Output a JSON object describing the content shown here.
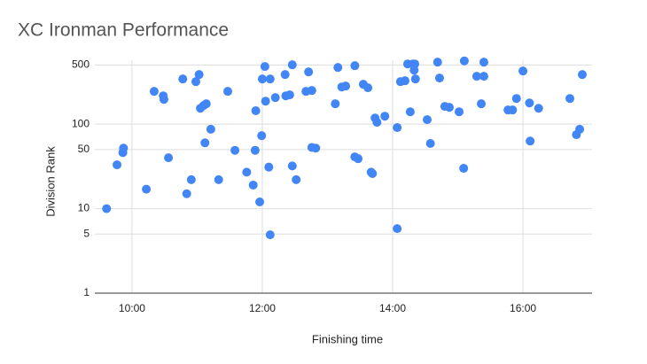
{
  "chart_data": {
    "type": "scatter",
    "title": "XC Ironman Performance",
    "x_label": "Finishing time",
    "y_label": "Division Rank",
    "x": [
      9.61,
      9.77,
      9.86,
      9.87,
      10.22,
      10.34,
      10.48,
      10.49,
      10.56,
      10.78,
      10.84,
      10.91,
      10.98,
      11.03,
      11.05,
      11.1,
      11.14,
      11.12,
      11.21,
      11.33,
      11.47,
      11.58,
      11.76,
      11.86,
      11.89,
      11.9,
      11.96,
      11.99,
      12.0,
      12.04,
      12.05,
      12.1,
      12.12,
      12.12,
      12.2,
      12.35,
      12.36,
      12.42,
      12.46,
      12.46,
      12.52,
      12.67,
      12.71,
      12.76,
      12.76,
      12.82,
      13.12,
      13.16,
      13.22,
      13.28,
      13.42,
      13.42,
      13.47,
      13.55,
      13.62,
      13.67,
      13.69,
      13.73,
      13.76,
      13.88,
      14.07,
      14.07,
      14.12,
      14.19,
      14.23,
      14.31,
      14.33,
      14.27,
      14.34,
      14.35,
      14.53,
      14.58,
      14.69,
      14.72,
      14.8,
      14.87,
      15.02,
      15.09,
      15.1,
      15.29,
      15.36,
      15.4,
      15.4,
      15.77,
      15.84,
      15.9,
      16.0,
      16.1,
      16.11,
      16.24,
      16.72,
      16.82,
      16.87,
      16.91
    ],
    "values": [
      10,
      33,
      46,
      52,
      17,
      244,
      216,
      196,
      40,
      342,
      15,
      22,
      318,
      386,
      154,
      166,
      174,
      60,
      87,
      22,
      244,
      49,
      27,
      19,
      49,
      144,
      12,
      73,
      342,
      480,
      187,
      31,
      4.9,
      342,
      206,
      386,
      216,
      222,
      32,
      503,
      22,
      244,
      415,
      250,
      53,
      52,
      174,
      468,
      275,
      282,
      491,
      41,
      39,
      296,
      269,
      27,
      26,
      118,
      105,
      124,
      5.8,
      91,
      318,
      326,
      515,
      515,
      435,
      140,
      515,
      342,
      113,
      59,
      541,
      351,
      162,
      158,
      140,
      30,
      560,
      368,
      174,
      541,
      368,
      147,
      147,
      201,
      425,
      178,
      63,
      154,
      201,
      75,
      87,
      386
    ],
    "color": "#4285f4",
    "xlim": [
      9.43,
      17.06
    ],
    "xticks": [
      {
        "value": 10,
        "label": "10:00"
      },
      {
        "value": 12,
        "label": "12:00"
      },
      {
        "value": 14,
        "label": "14:00"
      },
      {
        "value": 16,
        "label": "16:00"
      }
    ],
    "ylim": [
      1,
      570
    ],
    "yticks": [
      1,
      5,
      10,
      50,
      100,
      500
    ],
    "ylog": true,
    "grid": true
  }
}
